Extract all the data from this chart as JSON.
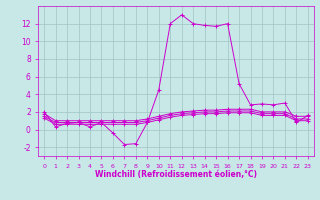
{
  "xlabel": "Windchill (Refroidissement éolien,°C)",
  "background_color": "#c8e8e8",
  "grid_color": "#a0c4c4",
  "line_color": "#cc00cc",
  "hours": [
    0,
    1,
    2,
    3,
    4,
    5,
    6,
    7,
    8,
    9,
    10,
    11,
    12,
    13,
    14,
    15,
    16,
    17,
    18,
    19,
    20,
    21,
    22,
    23
  ],
  "series": [
    [
      2.0,
      0.3,
      0.7,
      0.8,
      0.3,
      0.8,
      -0.4,
      -1.7,
      -1.6,
      0.8,
      4.5,
      12.0,
      13.0,
      12.0,
      11.8,
      11.7,
      12.0,
      5.2,
      2.8,
      2.9,
      2.8,
      3.0,
      0.8,
      1.6
    ],
    [
      1.8,
      1.0,
      1.0,
      1.0,
      1.0,
      1.0,
      1.0,
      1.0,
      1.0,
      1.2,
      1.5,
      1.8,
      2.0,
      2.1,
      2.2,
      2.2,
      2.3,
      2.3,
      2.3,
      2.0,
      2.0,
      2.0,
      1.5,
      1.5
    ],
    [
      1.5,
      0.8,
      0.8,
      0.8,
      0.8,
      0.8,
      0.8,
      0.8,
      0.8,
      1.0,
      1.3,
      1.6,
      1.8,
      1.9,
      2.0,
      2.0,
      2.1,
      2.1,
      2.1,
      1.8,
      1.8,
      1.8,
      1.2,
      1.2
    ],
    [
      1.3,
      0.6,
      0.6,
      0.6,
      0.6,
      0.6,
      0.6,
      0.6,
      0.6,
      0.8,
      1.1,
      1.4,
      1.6,
      1.7,
      1.8,
      1.8,
      1.9,
      1.9,
      1.9,
      1.6,
      1.6,
      1.6,
      1.0,
      1.0
    ]
  ],
  "ylim": [
    -3.0,
    14.0
  ],
  "yticks": [
    -2,
    0,
    2,
    4,
    6,
    8,
    10,
    12
  ],
  "xlim": [
    -0.5,
    23.5
  ]
}
